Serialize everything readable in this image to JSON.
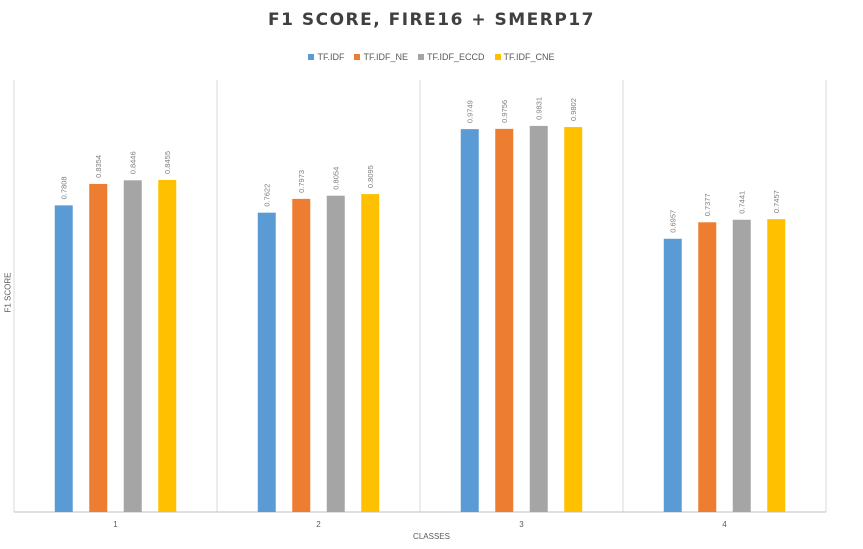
{
  "chart_data": {
    "type": "bar",
    "title": "F1 SCORE, FIRE16 + SMERP17",
    "xlabel": "CLASSES",
    "ylabel": "F1 SCORE",
    "categories": [
      "1",
      "2",
      "3",
      "4"
    ],
    "ylim": [
      0,
      1.1
    ],
    "grid": false,
    "legend_position": "top",
    "series": [
      {
        "name": "TF.IDF",
        "color": "#5b9bd5",
        "values": [
          0.7808,
          0.7622,
          0.9749,
          0.6957
        ],
        "labels": [
          "0.7808",
          "0.7622",
          "0.9749",
          "0.6957"
        ]
      },
      {
        "name": "TF.IDF_NE",
        "color": "#ed7d31",
        "values": [
          0.8354,
          0.7973,
          0.9756,
          0.7377
        ],
        "labels": [
          "0.8354",
          "0.7973",
          "0.9756",
          "0.7377"
        ]
      },
      {
        "name": "TF.IDF_ECCD",
        "color": "#a5a5a5",
        "values": [
          0.8446,
          0.8054,
          0.9831,
          0.7441
        ],
        "labels": [
          "0.8446",
          "0.8054",
          "0.9831",
          "0.7441"
        ]
      },
      {
        "name": "TF.IDF_CNE",
        "color": "#ffc000",
        "values": [
          0.8455,
          0.8095,
          0.9802,
          0.7457
        ],
        "labels": [
          "0.8455",
          "0.8095",
          "0.9802",
          "0.7457"
        ]
      }
    ]
  }
}
